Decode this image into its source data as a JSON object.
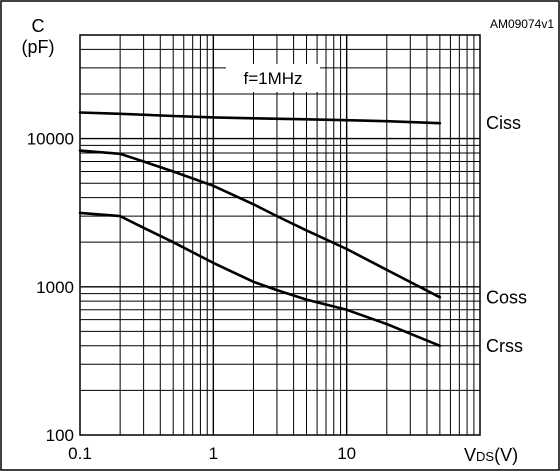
{
  "figure_code": "AM09074v1",
  "annotation": "f=1MHz",
  "chart_data": {
    "type": "line",
    "y_axis": {
      "label_line1": "C",
      "label_line2": "(pF)",
      "scale": "log",
      "range": [
        100,
        50000
      ],
      "tick_values": [
        100,
        1000,
        10000
      ],
      "tick_labels": [
        "100",
        "1000",
        "10000"
      ]
    },
    "x_axis": {
      "label_main": "V",
      "label_sub": "DS",
      "label_unit": "(V)",
      "scale": "log",
      "range": [
        0.1,
        100
      ],
      "tick_values": [
        0.1,
        1,
        10
      ],
      "tick_labels": [
        "0.1",
        "1",
        "10"
      ]
    },
    "grid": true,
    "legend": "none",
    "series": [
      {
        "name": "Ciss",
        "x": [
          0.1,
          0.2,
          0.5,
          1,
          2,
          5,
          10,
          20,
          50
        ],
        "values": [
          15000,
          14700,
          14200,
          13900,
          13700,
          13500,
          13300,
          13100,
          12700
        ]
      },
      {
        "name": "Coss",
        "x": [
          0.1,
          0.2,
          0.3,
          0.5,
          1,
          2,
          3,
          5,
          10,
          20,
          50
        ],
        "values": [
          8300,
          7900,
          7000,
          6000,
          4800,
          3600,
          3000,
          2400,
          1800,
          1300,
          850
        ]
      },
      {
        "name": "Crss",
        "x": [
          0.1,
          0.2,
          0.3,
          0.5,
          1,
          2,
          3,
          5,
          10,
          20,
          50
        ],
        "values": [
          3150,
          3000,
          2500,
          2000,
          1450,
          1080,
          950,
          820,
          700,
          560,
          400
        ]
      }
    ]
  }
}
